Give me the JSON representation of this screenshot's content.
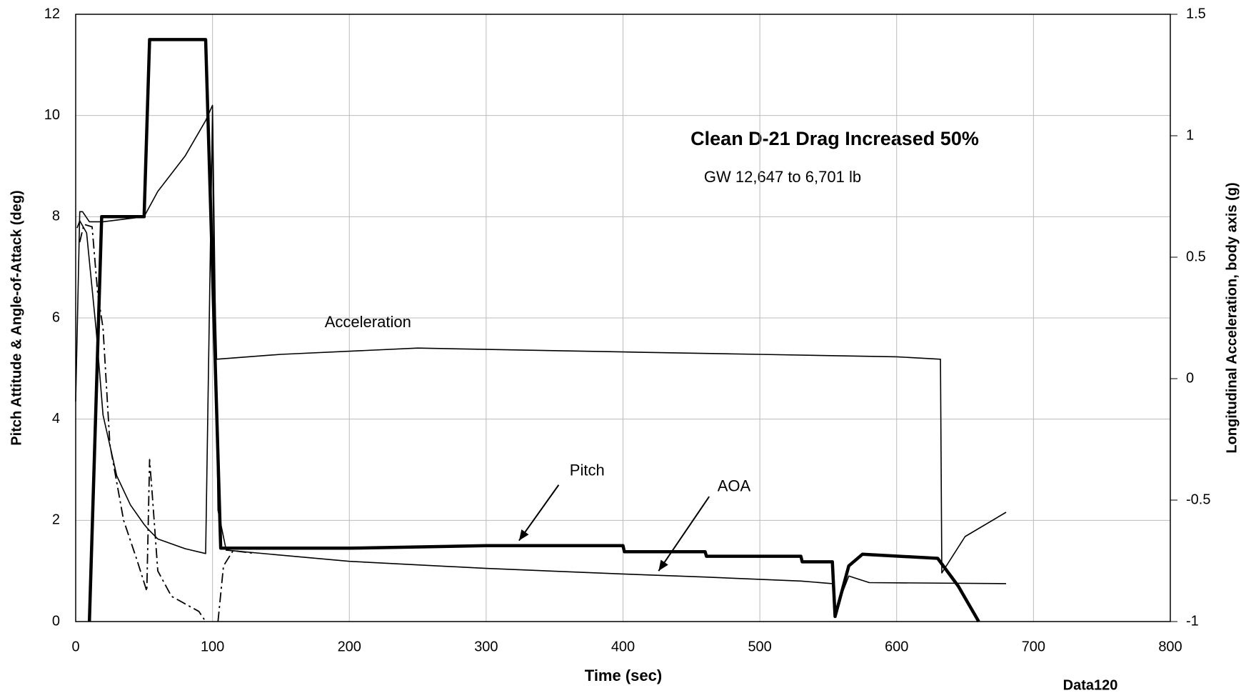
{
  "chart_data": {
    "type": "line",
    "title": "Clean D-21 Drag Increased 50%",
    "subtitle": "GW 12,647 to 6,701 lb",
    "xlabel": "Time (sec)",
    "ylabel": "Pitch Attitude & Angle-of-Attack (deg)",
    "y2label": "Longitudinal Acceleration, body axis (g)",
    "note": "Data120",
    "xlim": [
      0,
      800
    ],
    "xticks": [
      0,
      100,
      200,
      300,
      400,
      500,
      600,
      700,
      800
    ],
    "ylim": [
      0,
      12
    ],
    "yticks": [
      0,
      2,
      4,
      6,
      8,
      10,
      12
    ],
    "y2lim": [
      -1,
      1.5
    ],
    "y2ticks": [
      -1,
      -0.5,
      0,
      0.5,
      1,
      1.5
    ],
    "grid": true,
    "series": [
      {
        "name": "Pitch",
        "color": "#000000",
        "style": "thick",
        "x": [
          10,
          19,
          50,
          54,
          95,
          106,
          200,
          300,
          400,
          401,
          460,
          461,
          530,
          531,
          553,
          555,
          565,
          575,
          630,
          645,
          660
        ],
        "values": [
          0,
          8,
          8,
          11.5,
          11.5,
          1.45,
          1.45,
          1.5,
          1.5,
          1.38,
          1.38,
          1.29,
          1.29,
          1.18,
          1.18,
          0.1,
          1.1,
          1.33,
          1.25,
          0.7,
          0
        ]
      },
      {
        "name": "AOA",
        "color": "#000000",
        "style": "thin",
        "x": [
          0,
          3,
          5,
          10,
          20,
          50,
          60,
          80,
          95,
          100,
          104,
          110,
          200,
          300,
          400,
          460,
          530,
          553,
          555,
          565,
          580,
          680
        ],
        "values": [
          4.35,
          8.1,
          8.1,
          7.9,
          7.9,
          8.0,
          8.5,
          9.2,
          9.9,
          10.2,
          2.2,
          1.41,
          1.19,
          1.05,
          0.94,
          0.88,
          0.8,
          0.75,
          0.2,
          0.9,
          0.77,
          0.75
        ]
      },
      {
        "color": "#000000",
        "style": "dashdot",
        "x": [
          3,
          6,
          12,
          16,
          20,
          25,
          35,
          45,
          52,
          54,
          56,
          60,
          70,
          90,
          95,
          98,
          104,
          108,
          115,
          130
        ],
        "values": [
          7.5,
          7.85,
          7.8,
          6.5,
          5.8,
          3.5,
          2.0,
          1.2,
          0.6,
          3.2,
          2.5,
          1.0,
          0.5,
          0.2,
          0,
          null,
          0,
          1.1,
          1.4,
          1.35
        ]
      },
      {
        "name": "Acceleration",
        "color": "#000000",
        "style": "thin",
        "axis": "y2",
        "x": [
          1,
          3,
          8,
          15,
          20,
          30,
          40,
          50,
          53,
          60,
          80,
          95,
          100,
          101,
          103,
          150,
          250,
          400,
          500,
          600,
          632,
          633,
          650,
          680
        ],
        "values": [
          0.62,
          0.65,
          0.6,
          0.2,
          -0.15,
          -0.4,
          -0.52,
          -0.6,
          -0.62,
          -0.66,
          -0.7,
          -0.72,
          1.1,
          0.5,
          0.08,
          0.1,
          0.126,
          0.11,
          0.1,
          0.09,
          0.08,
          -0.8,
          -0.65,
          -0.55
        ]
      }
    ]
  }
}
